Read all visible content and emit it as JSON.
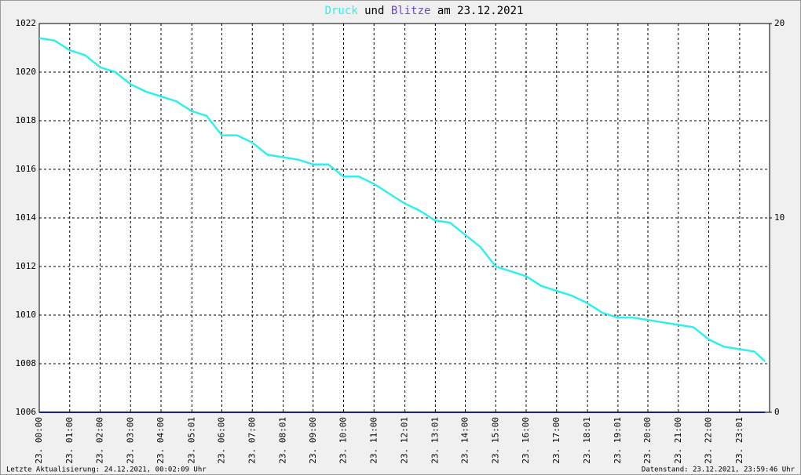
{
  "chart_data": {
    "type": "line",
    "title_parts": [
      "Druck",
      "und",
      "Blitze",
      "am 23.12.2021"
    ],
    "x": [
      0,
      0.5,
      1,
      1.5,
      2,
      2.5,
      3,
      3.5,
      4,
      4.5,
      5,
      5.5,
      6,
      6.5,
      7,
      7.5,
      8,
      8.5,
      9,
      9.5,
      10,
      10.5,
      11,
      11.5,
      12,
      12.5,
      13,
      13.5,
      14,
      14.5,
      15,
      15.5,
      16,
      16.5,
      17,
      17.5,
      18,
      18.5,
      19,
      19.5,
      20,
      20.5,
      21,
      21.5,
      22,
      22.5,
      23,
      23.5,
      23.85
    ],
    "series": [
      {
        "name": "Druck",
        "color": "#33eeee",
        "values": [
          1021.4,
          1021.3,
          1020.9,
          1020.7,
          1020.2,
          1020.0,
          1019.5,
          1019.2,
          1019.0,
          1018.8,
          1018.4,
          1018.2,
          1017.4,
          1017.4,
          1017.1,
          1016.6,
          1016.5,
          1016.4,
          1016.2,
          1016.2,
          1015.7,
          1015.7,
          1015.4,
          1015.0,
          1014.6,
          1014.3,
          1013.9,
          1013.8,
          1013.3,
          1012.8,
          1012.0,
          1011.8,
          1011.6,
          1011.2,
          1011.0,
          1010.8,
          1010.5,
          1010.1,
          1009.9,
          1009.9,
          1009.8,
          1009.7,
          1009.6,
          1009.5,
          1009.0,
          1008.7,
          1008.6,
          1008.5,
          1008.1
        ]
      },
      {
        "name": "Blitze",
        "color": "#202080",
        "axis": "y2",
        "values": [
          0,
          0,
          0,
          0,
          0,
          0,
          0,
          0,
          0,
          0,
          0,
          0,
          0,
          0,
          0,
          0,
          0,
          0,
          0,
          0,
          0,
          0,
          0,
          0,
          0,
          0,
          0,
          0,
          0,
          0,
          0,
          0,
          0,
          0,
          0,
          0,
          0,
          0,
          0,
          0,
          0,
          0,
          0,
          0,
          0,
          0,
          0,
          0,
          0
        ]
      }
    ],
    "xlim": [
      0,
      24
    ],
    "xticks": [
      {
        "value": 0,
        "label": "23. 00:00"
      },
      {
        "value": 1,
        "label": "23. 01:00"
      },
      {
        "value": 2,
        "label": "23. 02:00"
      },
      {
        "value": 3,
        "label": "23. 03:00"
      },
      {
        "value": 4,
        "label": "23. 04:00"
      },
      {
        "value": 5.0167,
        "label": "23. 05:01"
      },
      {
        "value": 6,
        "label": "23. 06:00"
      },
      {
        "value": 7,
        "label": "23. 07:00"
      },
      {
        "value": 8.0167,
        "label": "23. 08:01"
      },
      {
        "value": 9,
        "label": "23. 09:00"
      },
      {
        "value": 10,
        "label": "23. 10:00"
      },
      {
        "value": 11,
        "label": "23. 11:00"
      },
      {
        "value": 12.0167,
        "label": "23. 12:01"
      },
      {
        "value": 13.0167,
        "label": "23. 13:01"
      },
      {
        "value": 14,
        "label": "23. 14:00"
      },
      {
        "value": 15,
        "label": "23. 15:00"
      },
      {
        "value": 16,
        "label": "23. 16:00"
      },
      {
        "value": 17,
        "label": "23. 17:00"
      },
      {
        "value": 18.0167,
        "label": "23. 18:01"
      },
      {
        "value": 19.0167,
        "label": "23. 19:01"
      },
      {
        "value": 20,
        "label": "23. 20:00"
      },
      {
        "value": 21,
        "label": "23. 21:00"
      },
      {
        "value": 22,
        "label": "23. 22:00"
      },
      {
        "value": 23.0167,
        "label": "23. 23:01"
      }
    ],
    "ylim": [
      1006,
      1022
    ],
    "yticks": [
      1006,
      1008,
      1010,
      1012,
      1014,
      1016,
      1018,
      1020,
      1022
    ],
    "y2lim": [
      0,
      20
    ],
    "y2ticks": [
      0,
      10,
      20
    ],
    "grid": true,
    "footer_left": "Letzte Aktualisierung: 24.12.2021, 00:02:09 Uhr",
    "footer_right": "Datenstand: 23.12.2021, 23:59:46 Uhr"
  }
}
